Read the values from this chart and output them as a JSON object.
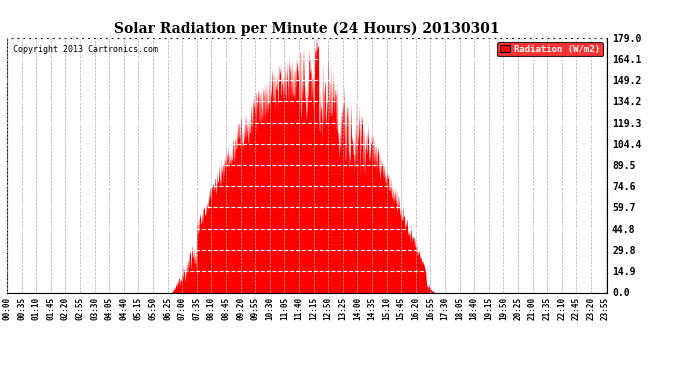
{
  "title": "Solar Radiation per Minute (24 Hours) 20130301",
  "copyright_text": "Copyright 2013 Cartronics.com",
  "legend_label": "Radiation (W/m2)",
  "background_color": "#ffffff",
  "fill_color": "#ff0000",
  "line_color": "#ff0000",
  "grid_color_h": "#ffffff",
  "grid_color_v": "#b0b0b0",
  "ytick_labels": [
    "0.0",
    "14.9",
    "29.8",
    "44.8",
    "59.7",
    "74.6",
    "89.5",
    "104.4",
    "119.3",
    "134.2",
    "149.2",
    "164.1",
    "179.0"
  ],
  "ytick_values": [
    0.0,
    14.9,
    29.8,
    44.8,
    59.7,
    74.6,
    89.5,
    104.4,
    119.3,
    134.2,
    149.2,
    164.1,
    179.0
  ],
  "ymax": 179.0,
  "ymin": 0.0,
  "xtick_labels": [
    "00:00",
    "00:35",
    "01:10",
    "01:45",
    "02:20",
    "02:55",
    "03:30",
    "04:05",
    "04:40",
    "05:15",
    "05:50",
    "06:25",
    "07:00",
    "07:35",
    "08:10",
    "08:45",
    "09:20",
    "09:55",
    "10:30",
    "11:05",
    "11:40",
    "12:15",
    "12:50",
    "13:25",
    "14:00",
    "14:35",
    "15:10",
    "15:45",
    "16:20",
    "16:55",
    "17:30",
    "18:05",
    "18:40",
    "19:15",
    "19:50",
    "20:25",
    "21:00",
    "21:35",
    "22:10",
    "22:45",
    "23:20",
    "23:55"
  ],
  "num_minutes": 1440,
  "sunrise_minute": 395,
  "sunset_minute": 1025,
  "peak_minute": 742,
  "peak_value": 179.0,
  "random_seed": 17
}
